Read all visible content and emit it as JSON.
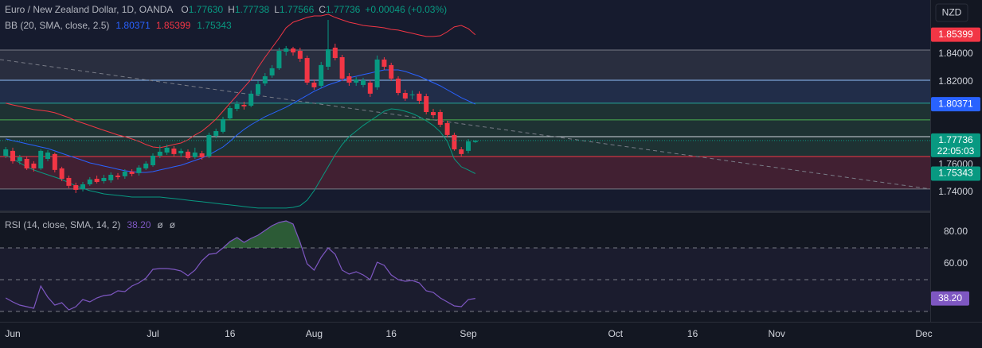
{
  "chart_data": [
    {
      "type": "candlestick",
      "title": "Euro / New Zealand Dollar, 1D, OANDA",
      "ohlc_legend": {
        "open": {
          "key": "O",
          "label": "1.77630"
        },
        "high": {
          "key": "H",
          "label": "1.77738"
        },
        "low": {
          "key": "L",
          "label": "1.77566"
        },
        "close": {
          "key": "C",
          "label": "1.77736"
        },
        "change": "+0.00046 (+0.03%)"
      },
      "currency": "NZD",
      "countdown": "22:05:03",
      "up_color": "#089981",
      "down_color": "#f23645",
      "open": [
        1.7664,
        1.7699,
        1.7624,
        1.7641,
        1.7607,
        1.7572,
        1.7641,
        1.7676,
        1.7572,
        1.7503,
        1.7451,
        1.7423,
        1.7457,
        1.7497,
        1.748,
        1.7486,
        1.752,
        1.7515,
        1.7549,
        1.7538,
        1.7572,
        1.7595,
        1.7664,
        1.7687,
        1.7716,
        1.7681,
        1.7693,
        1.7653,
        1.7681,
        1.7658,
        1.7808,
        1.7837,
        1.7934,
        1.8003,
        1.8032,
        1.8026,
        1.8107,
        1.8187,
        1.8245,
        1.8297,
        1.8417,
        1.844,
        1.8423,
        1.8371,
        1.8193,
        1.817,
        1.8308,
        1.8446,
        1.8377,
        1.8239,
        1.8193,
        1.8176,
        1.8193,
        1.8159,
        1.836,
        1.832,
        1.8222,
        1.8118,
        1.8101,
        1.8113,
        1.8095,
        1.798,
        1.798,
        1.79,
        1.7814,
        1.771,
        1.7699,
        1.7763
      ],
      "high": [
        1.7727,
        1.7722,
        1.767,
        1.7658,
        1.7624,
        1.771,
        1.7704,
        1.7687,
        1.7584,
        1.752,
        1.7469,
        1.7474,
        1.7509,
        1.752,
        1.7526,
        1.7543,
        1.7538,
        1.7566,
        1.7566,
        1.7595,
        1.7624,
        1.7681,
        1.7739,
        1.7745,
        1.7733,
        1.7716,
        1.771,
        1.7722,
        1.7699,
        1.7831,
        1.786,
        1.7946,
        1.8026,
        1.8061,
        1.8055,
        1.8136,
        1.8205,
        1.8262,
        1.832,
        1.8446,
        1.8458,
        1.8452,
        1.8446,
        1.8389,
        1.8216,
        1.8343,
        1.8647,
        1.8475,
        1.8394,
        1.8262,
        1.8233,
        1.8228,
        1.821,
        1.8389,
        1.8377,
        1.8337,
        1.8239,
        1.8141,
        1.8136,
        1.813,
        1.8113,
        1.8003,
        1.7998,
        1.7917,
        1.7831,
        1.7727,
        1.7785,
        1.77738
      ],
      "low": [
        1.7647,
        1.7607,
        1.7601,
        1.7561,
        1.7549,
        1.7561,
        1.7624,
        1.7543,
        1.748,
        1.7428,
        1.7394,
        1.7405,
        1.7446,
        1.7463,
        1.7463,
        1.7469,
        1.7492,
        1.7497,
        1.7515,
        1.752,
        1.7561,
        1.7584,
        1.7647,
        1.767,
        1.7658,
        1.7653,
        1.7635,
        1.7641,
        1.7635,
        1.7647,
        1.7791,
        1.7825,
        1.7923,
        1.7986,
        1.7998,
        1.8015,
        1.8095,
        1.817,
        1.8228,
        1.8285,
        1.8389,
        1.8389,
        1.8343,
        1.8176,
        1.8141,
        1.8153,
        1.8285,
        1.8354,
        1.8205,
        1.817,
        1.817,
        1.8159,
        1.8089,
        1.8141,
        1.8285,
        1.8205,
        1.8101,
        1.8061,
        1.8072,
        1.8038,
        1.7963,
        1.7934,
        1.7871,
        1.7796,
        1.7699,
        1.7658,
        1.7681,
        1.77566
      ],
      "close": [
        1.771,
        1.7624,
        1.7653,
        1.7572,
        1.7572,
        1.7699,
        1.7687,
        1.7561,
        1.7497,
        1.7446,
        1.7417,
        1.7457,
        1.7492,
        1.7474,
        1.7503,
        1.7526,
        1.7509,
        1.7549,
        1.7532,
        1.7578,
        1.7607,
        1.7664,
        1.7693,
        1.7722,
        1.7676,
        1.7699,
        1.7647,
        1.7687,
        1.7653,
        1.7814,
        1.7842,
        1.7929,
        1.8009,
        1.8038,
        1.8021,
        1.8113,
        1.8182,
        1.8239,
        1.8297,
        1.8423,
        1.844,
        1.8412,
        1.8366,
        1.8193,
        1.8159,
        1.832,
        1.8434,
        1.8371,
        1.8222,
        1.8193,
        1.8216,
        1.821,
        1.8113,
        1.836,
        1.8308,
        1.8222,
        1.8118,
        1.8078,
        1.8107,
        1.8061,
        1.798,
        1.7957,
        1.7888,
        1.7814,
        1.771,
        1.7676,
        1.7768,
        1.77736
      ],
      "indicator": {
        "label": "BB (20, SMA, close, 2.5)",
        "lines": [
          {
            "color": "#2962ff",
            "value_label": "1.80371",
            "values": [
              1.7785,
              1.7773,
              1.7762,
              1.775,
              1.7739,
              1.7727,
              1.7716,
              1.7699,
              1.7681,
              1.7664,
              1.7647,
              1.763,
              1.7612,
              1.7601,
              1.7589,
              1.7578,
              1.7566,
              1.7555,
              1.7549,
              1.7543,
              1.7543,
              1.7549,
              1.7561,
              1.7572,
              1.7584,
              1.7595,
              1.7612,
              1.763,
              1.7647,
              1.767,
              1.7699,
              1.7727,
              1.7768,
              1.7814,
              1.7854,
              1.7888,
              1.7917,
              1.7946,
              1.7969,
              1.7992,
              1.8015,
              1.8044,
              1.8072,
              1.8101,
              1.813,
              1.8153,
              1.8176,
              1.8193,
              1.821,
              1.8228,
              1.8239,
              1.8251,
              1.8262,
              1.8274,
              1.8285,
              1.8285,
              1.8285,
              1.8274,
              1.8256,
              1.8239,
              1.8216,
              1.8193,
              1.817,
              1.8141,
              1.8113,
              1.8084,
              1.8061,
              1.80371
            ]
          },
          {
            "color": "#f23645",
            "value_label": "1.85399",
            "values": [
              1.8044,
              1.8032,
              1.8021,
              1.8009,
              1.7998,
              1.7992,
              1.7986,
              1.7975,
              1.7957,
              1.794,
              1.7917,
              1.79,
              1.7883,
              1.7865,
              1.7848,
              1.7831,
              1.7814,
              1.7802,
              1.7785,
              1.7768,
              1.7745,
              1.7727,
              1.7722,
              1.7733,
              1.7745,
              1.7756,
              1.7779,
              1.7814,
              1.7842,
              1.7883,
              1.7929,
              1.7986,
              1.8044,
              1.8101,
              1.8159,
              1.8216,
              1.8302,
              1.8377,
              1.8446,
              1.8515,
              1.859,
              1.863,
              1.8647,
              1.8665,
              1.8676,
              1.8676,
              1.8688,
              1.8665,
              1.8647,
              1.863,
              1.8619,
              1.8607,
              1.8601,
              1.8596,
              1.859,
              1.8578,
              1.8573,
              1.8561,
              1.855,
              1.8538,
              1.8527,
              1.8527,
              1.8532,
              1.8561,
              1.8596,
              1.8607,
              1.8584,
              1.85399
            ]
          },
          {
            "color": "#089981",
            "value_label": "1.75343",
            "values": [
              1.767,
              1.7641,
              1.7612,
              1.7584,
              1.7561,
              1.7543,
              1.7526,
              1.7509,
              1.7492,
              1.7469,
              1.7446,
              1.7428,
              1.7411,
              1.74,
              1.7388,
              1.7382,
              1.7377,
              1.7371,
              1.7365,
              1.7365,
              1.7365,
              1.7365,
              1.7365,
              1.7359,
              1.7354,
              1.7348,
              1.7342,
              1.7336,
              1.7331,
              1.7325,
              1.7319,
              1.7313,
              1.7308,
              1.7302,
              1.7296,
              1.729,
              1.7285,
              1.7285,
              1.7285,
              1.7285,
              1.7285,
              1.729,
              1.7302,
              1.7342,
              1.7411,
              1.7497,
              1.7584,
              1.767,
              1.7745,
              1.7802,
              1.7842,
              1.7883,
              1.7917,
              1.7951,
              1.7986,
              1.8003,
              1.7998,
              1.7986,
              1.7969,
              1.7946,
              1.7917,
              1.7883,
              1.7837,
              1.7768,
              1.7641,
              1.7584,
              1.7561,
              1.75343
            ]
          }
        ]
      },
      "levels": [
        {
          "value": 1.8429,
          "color": "#787b86",
          "fill": "rgba(120,123,134,0.20)"
        },
        {
          "value": 1.821,
          "color": "#90bff9",
          "fill": "rgba(93,140,220,0.16)"
        },
        {
          "value": 1.8044,
          "color": "#26a69a",
          "fill": "rgba(76,175,80,0.16)"
        },
        {
          "value": 1.7923,
          "color": "#4caf50",
          "fill": "rgba(76,175,80,0.16)"
        },
        {
          "value": 1.7802,
          "color": "#d1d4dc",
          "fill": "rgba(76,175,80,0.16)"
        },
        {
          "value": 1.7658,
          "color": "#f23645",
          "fill": "rgba(242,54,69,0.20)"
        },
        {
          "value": 1.7423,
          "color": "#787b86",
          "fill": null
        }
      ],
      "trend_line": {
        "color": "#787b86",
        "values": [
          1.836,
          1.7423
        ]
      },
      "xlim": [
        -0.82,
        131.91
      ],
      "ylim": [
        1.7267,
        1.8791
      ],
      "yticks": [
        {
          "value": 1.74,
          "label": "1.74000"
        },
        {
          "value": 1.76,
          "label": "1.76000"
        },
        {
          "value": 1.82,
          "label": "1.82000"
        },
        {
          "value": 1.84,
          "label": "1.84000"
        }
      ]
    },
    {
      "type": "line",
      "label": "RSI (14, close, SMA, 14, 2)",
      "value_label": "38.20",
      "placeholders": [
        "ø",
        "ø"
      ],
      "color": "#7e57c2",
      "overbought_fill": "rgba(76,175,80,0.45)",
      "values": [
        38.5,
        36,
        34,
        33,
        32,
        46,
        39,
        34,
        35.5,
        31,
        33,
        37.5,
        36,
        38.5,
        40,
        40.5,
        43,
        42.5,
        46,
        48,
        51,
        56.5,
        57,
        57,
        56.5,
        55.5,
        52.5,
        56,
        62,
        66,
        66.5,
        70,
        74,
        76.5,
        73.5,
        76,
        78,
        81,
        84,
        86,
        87,
        85,
        73.5,
        60,
        56,
        64,
        70,
        66,
        56,
        53.5,
        55,
        53,
        50,
        61,
        59,
        53,
        50,
        49,
        49.5,
        48,
        43,
        42,
        38.5,
        36,
        33.5,
        33,
        37.5,
        38.2
      ],
      "levels": [
        70,
        50,
        30
      ],
      "xlim": [
        -0.82,
        131.91
      ],
      "ylim": [
        23.5,
        92
      ],
      "yticks": [
        {
          "value": 60,
          "label": "60.00"
        },
        {
          "value": 80,
          "label": "80.00"
        }
      ],
      "xticks": [
        {
          "value": 1,
          "label": "Jun"
        },
        {
          "value": 21,
          "label": "Jul"
        },
        {
          "value": 32,
          "label": "16"
        },
        {
          "value": 44,
          "label": "Aug"
        },
        {
          "value": 55,
          "label": "16"
        },
        {
          "value": 66,
          "label": "Sep"
        },
        {
          "value": 87,
          "label": "Oct"
        },
        {
          "value": 98,
          "label": "16"
        },
        {
          "value": 110,
          "label": "Nov"
        },
        {
          "value": 131,
          "label": "Dec"
        }
      ]
    }
  ]
}
